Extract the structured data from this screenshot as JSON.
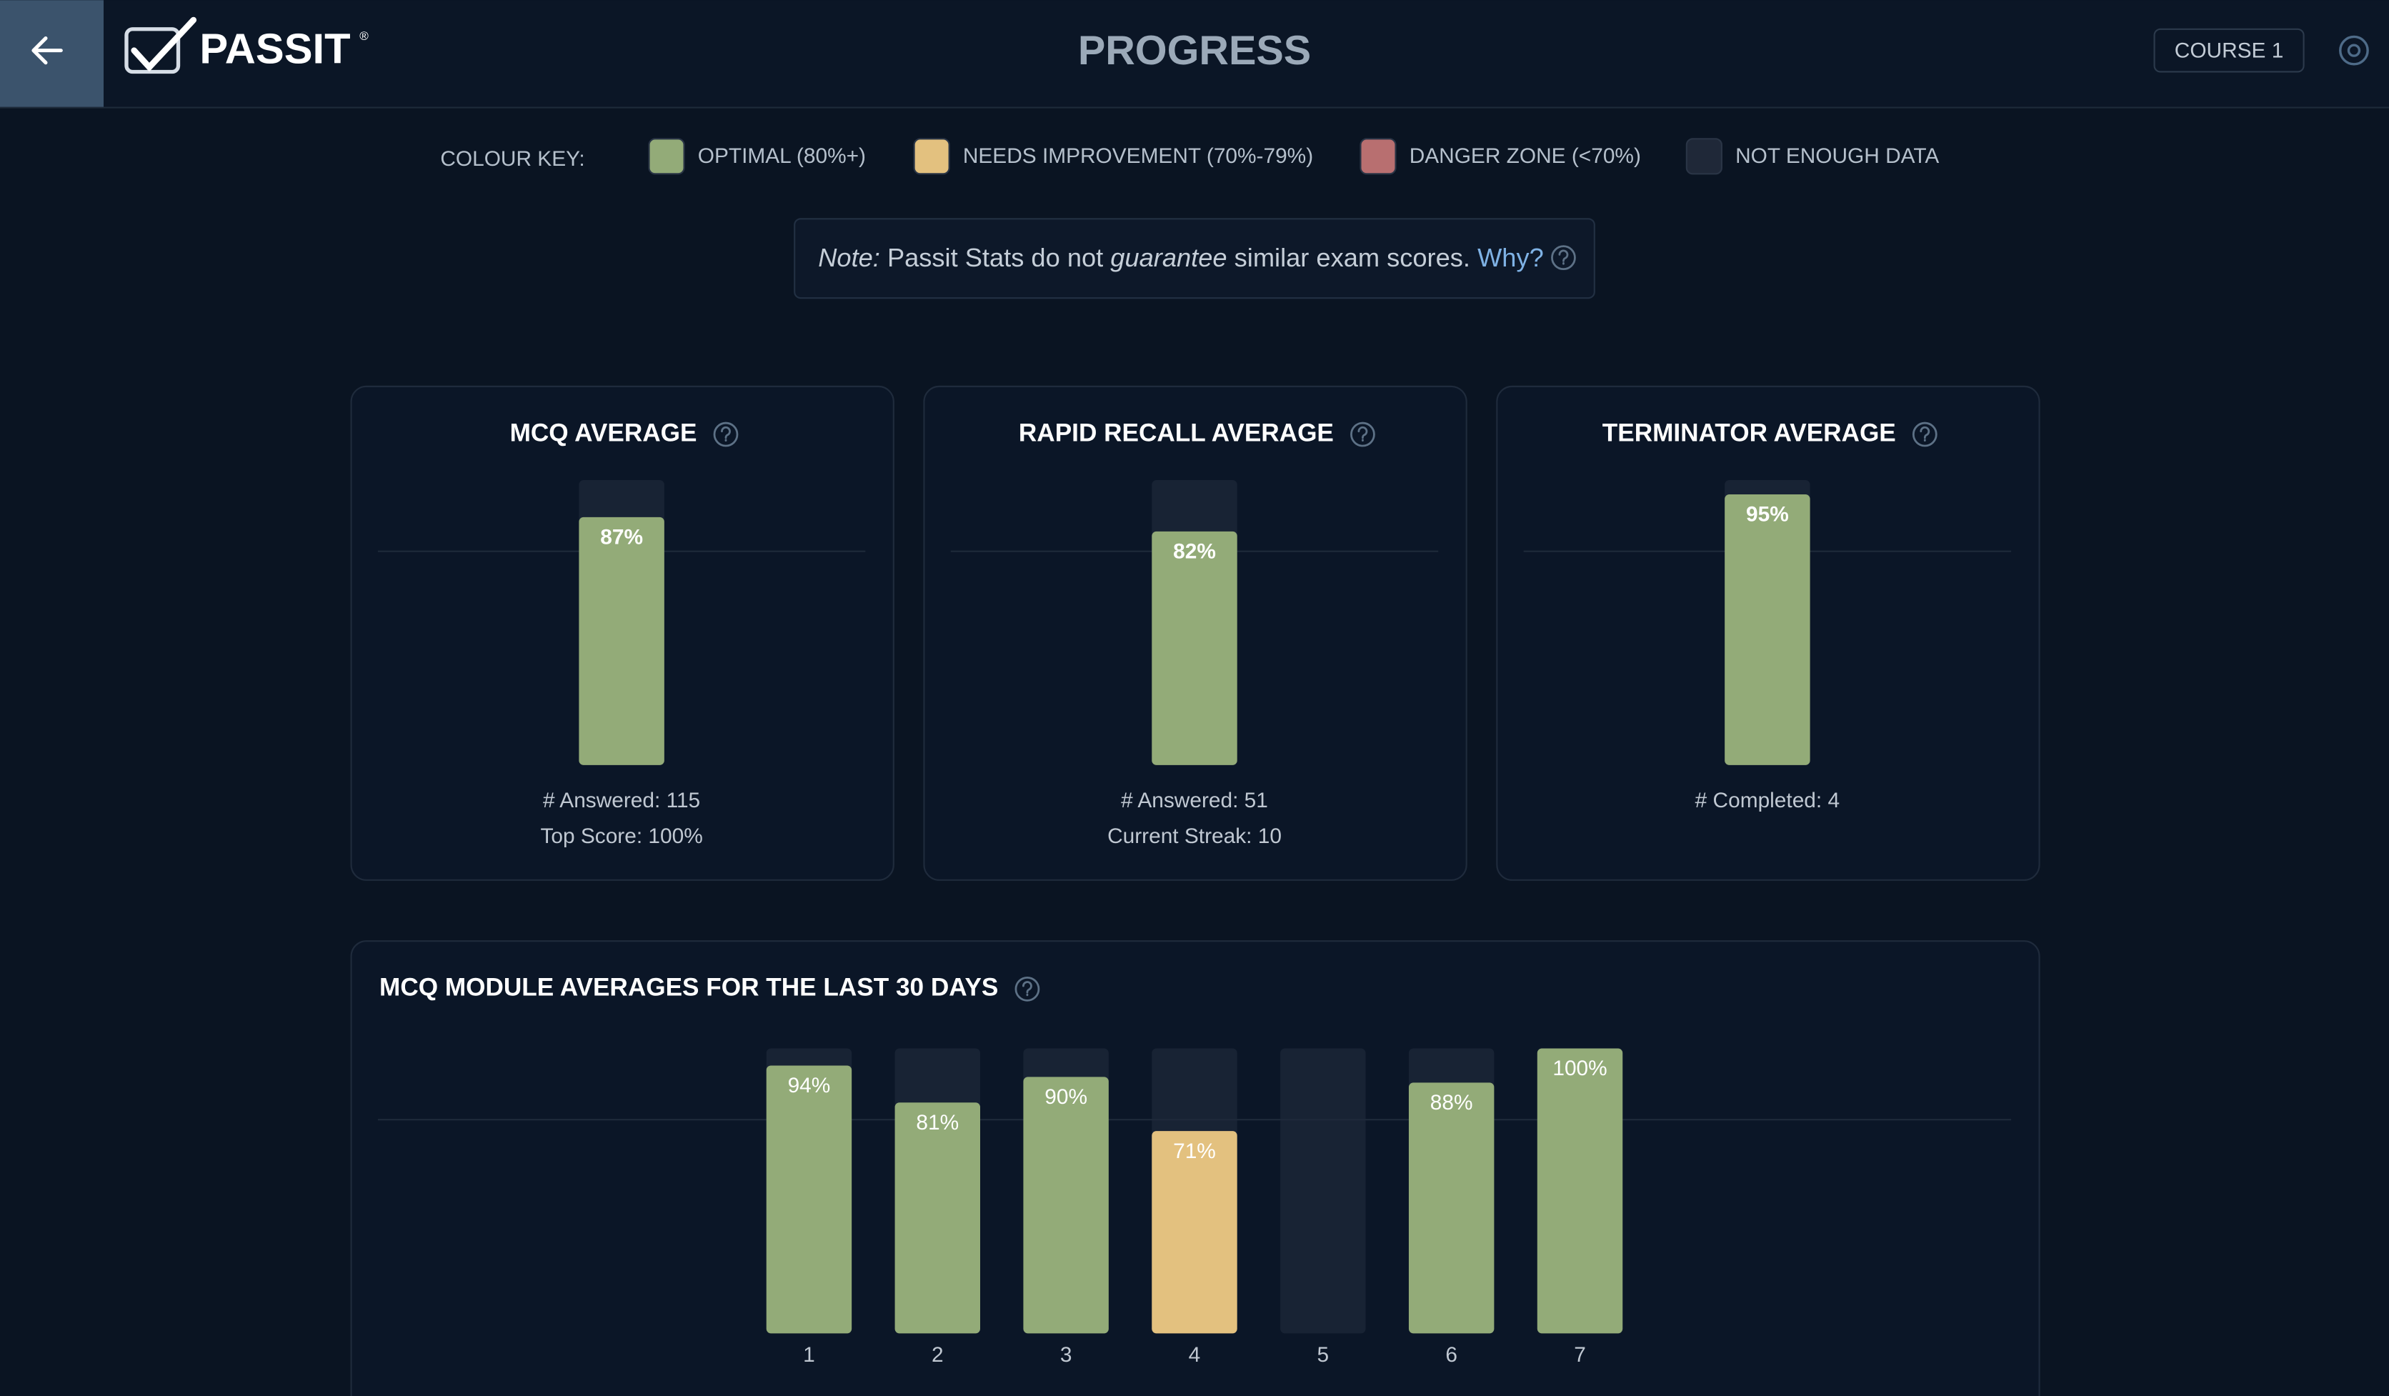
{
  "header": {
    "logo": "PASSIT",
    "logo_mark": "®",
    "title": "PROGRESS",
    "course": "COURSE 1"
  },
  "colour_key": {
    "label": "COLOUR KEY:",
    "items": [
      {
        "name": "OPTIMAL (80%+)",
        "color": "#93ab78"
      },
      {
        "name": "NEEDS IMPROVEMENT (70%-79%)",
        "color": "#e3c17f"
      },
      {
        "name": "DANGER ZONE (<70%)",
        "color": "#b86f70"
      },
      {
        "name": "NOT ENOUGH DATA",
        "color": "#1f2838"
      }
    ]
  },
  "note": {
    "label": "Note:",
    "text1": " Passit Stats do not ",
    "emphasis": "guarantee",
    "text2": " similar exam scores. ",
    "link": "Why?"
  },
  "chart_data": [
    {
      "type": "bar",
      "title": "MCQ AVERAGE",
      "values": [
        87
      ],
      "value_labels": [
        "87%"
      ],
      "colors": [
        "#93ab78"
      ],
      "ylim": [
        0,
        100
      ],
      "gridline": 75,
      "stats": [
        "# Answered: 115",
        "Top Score: 100%"
      ]
    },
    {
      "type": "bar",
      "title": "RAPID RECALL AVERAGE",
      "values": [
        82
      ],
      "value_labels": [
        "82%"
      ],
      "colors": [
        "#93ab78"
      ],
      "ylim": [
        0,
        100
      ],
      "gridline": 75,
      "stats": [
        "# Answered: 51",
        "Current Streak: 10"
      ]
    },
    {
      "type": "bar",
      "title": "TERMINATOR AVERAGE",
      "values": [
        95
      ],
      "value_labels": [
        "95%"
      ],
      "colors": [
        "#93ab78"
      ],
      "ylim": [
        0,
        100
      ],
      "gridline": 75,
      "stats": [
        "# Completed: 4"
      ]
    },
    {
      "type": "bar",
      "title": "MCQ MODULE AVERAGES FOR THE LAST 30 DAYS",
      "categories": [
        "1",
        "2",
        "3",
        "4",
        "5",
        "6",
        "7"
      ],
      "values": [
        94,
        81,
        90,
        71,
        null,
        88,
        100
      ],
      "value_labels": [
        "94%",
        "81%",
        "90%",
        "71%",
        null,
        "88%",
        "100%"
      ],
      "colors": [
        "#93ab78",
        "#93ab78",
        "#93ab78",
        "#e3c17f",
        null,
        "#93ab78",
        "#93ab78"
      ],
      "ylim": [
        0,
        100
      ],
      "gridline": 75
    }
  ]
}
